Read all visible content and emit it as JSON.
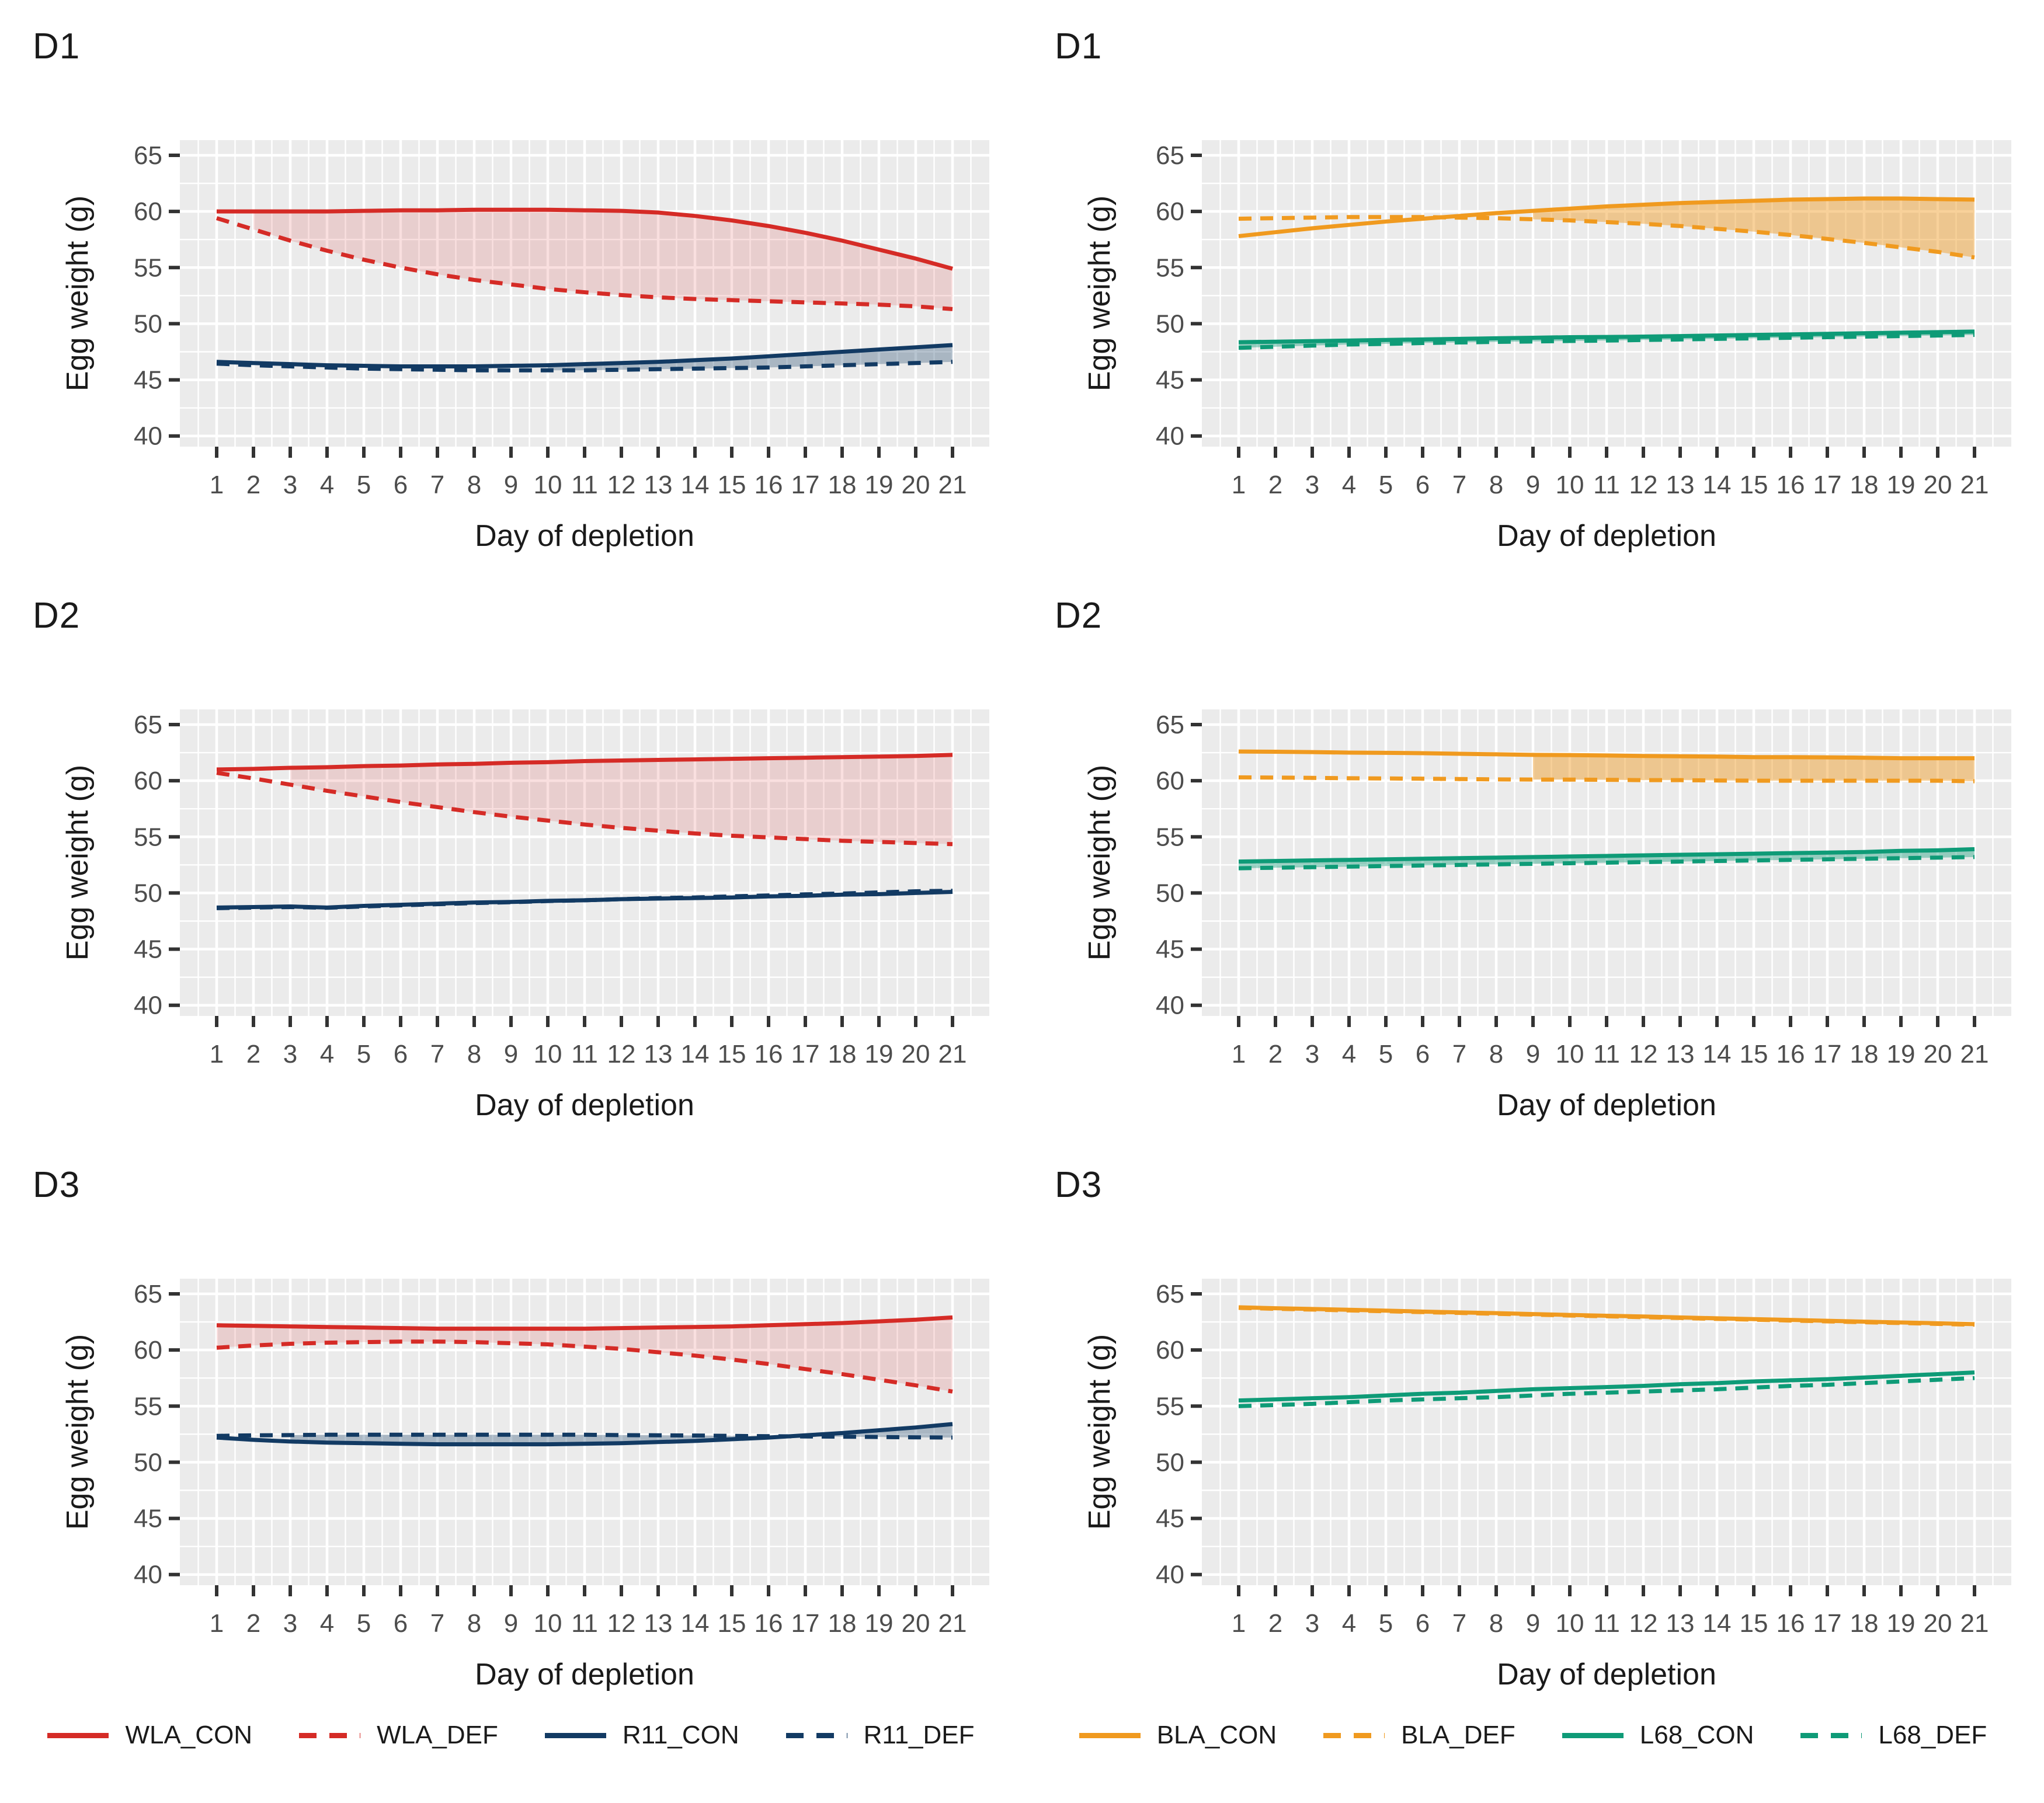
{
  "colors": {
    "panel_bg": "#EBEBEB",
    "grid": "#FFFFFF",
    "tick": "#333333",
    "tick_label": "#4D4D4D",
    "axis_title": "#1A1A1A",
    "wla_red": "#D52B26",
    "r11_navy": "#123A63",
    "bla_orange": "#F09A1F",
    "l68_green": "#0E9B77"
  },
  "chart_data": [
    {
      "type": "line",
      "title": "D1",
      "column": "left",
      "xlabel": "Day of depletion",
      "ylabel": "Egg weight (g)",
      "x": [
        1,
        2,
        3,
        4,
        5,
        6,
        7,
        8,
        9,
        10,
        11,
        12,
        13,
        14,
        15,
        16,
        17,
        18,
        19,
        20,
        21
      ],
      "xlim": [
        0,
        22
      ],
      "ylim": [
        39.05,
        66.35
      ],
      "yticks": [
        40,
        45,
        50,
        55,
        60,
        65
      ],
      "grid": "major+minor",
      "legend_position": "bottom",
      "series": [
        {
          "name": "WLA_CON",
          "color": "#D52B26",
          "style": "solid",
          "values": [
            60,
            60,
            60,
            60,
            60.05,
            60.1,
            60.1,
            60.15,
            60.15,
            60.15,
            60.1,
            60.05,
            59.9,
            59.6,
            59.2,
            58.7,
            58.1,
            57.4,
            56.6,
            55.8,
            54.9
          ]
        },
        {
          "name": "WLA_DEF",
          "color": "#D52B26",
          "style": "dashed",
          "values": [
            59.4,
            58.4,
            57.4,
            56.5,
            55.7,
            55,
            54.4,
            53.9,
            53.5,
            53.1,
            52.8,
            52.55,
            52.35,
            52.2,
            52.1,
            52,
            51.9,
            51.8,
            51.7,
            51.55,
            51.3
          ]
        },
        {
          "name": "R11_CON",
          "color": "#123A63",
          "style": "solid",
          "values": [
            46.6,
            46.5,
            46.4,
            46.3,
            46.25,
            46.2,
            46.2,
            46.2,
            46.25,
            46.3,
            46.4,
            46.5,
            46.6,
            46.75,
            46.9,
            47.1,
            47.3,
            47.5,
            47.7,
            47.9,
            48.1
          ]
        },
        {
          "name": "R11_DEF",
          "color": "#123A63",
          "style": "dashed",
          "values": [
            46.45,
            46.3,
            46.2,
            46.1,
            46,
            45.95,
            45.9,
            45.85,
            45.85,
            45.85,
            45.85,
            45.9,
            45.95,
            46,
            46.05,
            46.1,
            46.2,
            46.3,
            46.4,
            46.5,
            46.6
          ]
        }
      ],
      "ribbons": [
        {
          "upper": "WLA_CON",
          "lower": "WLA_DEF",
          "color": "#D52B26",
          "opacity": 0.15,
          "from": 2,
          "to": 21
        },
        {
          "upper": "R11_CON",
          "lower": "R11_DEF",
          "color": "#123A63",
          "opacity": 0.3,
          "from": 10,
          "to": 21
        }
      ]
    },
    {
      "type": "line",
      "title": "D1",
      "column": "right",
      "xlabel": "Day of depletion",
      "ylabel": "Egg weight (g)",
      "x": [
        1,
        2,
        3,
        4,
        5,
        6,
        7,
        8,
        9,
        10,
        11,
        12,
        13,
        14,
        15,
        16,
        17,
        18,
        19,
        20,
        21
      ],
      "xlim": [
        0,
        22
      ],
      "ylim": [
        39.05,
        66.35
      ],
      "yticks": [
        40,
        45,
        50,
        55,
        60,
        65
      ],
      "grid": "major+minor",
      "legend_position": "bottom",
      "series": [
        {
          "name": "BLA_CON",
          "color": "#F09A1F",
          "style": "solid",
          "values": [
            57.8,
            58.15,
            58.5,
            58.8,
            59.1,
            59.35,
            59.6,
            59.85,
            60.05,
            60.25,
            60.45,
            60.6,
            60.75,
            60.85,
            60.95,
            61.05,
            61.1,
            61.15,
            61.15,
            61.1,
            61.05
          ]
        },
        {
          "name": "BLA_DEF",
          "color": "#F09A1F",
          "style": "dashed",
          "values": [
            59.35,
            59.4,
            59.45,
            59.5,
            59.5,
            59.5,
            59.45,
            59.4,
            59.3,
            59.2,
            59.05,
            58.9,
            58.7,
            58.45,
            58.2,
            57.9,
            57.55,
            57.2,
            56.8,
            56.4,
            55.9
          ]
        },
        {
          "name": "L68_CON",
          "color": "#0E9B77",
          "style": "solid",
          "values": [
            48.35,
            48.4,
            48.45,
            48.5,
            48.55,
            48.6,
            48.65,
            48.7,
            48.75,
            48.8,
            48.82,
            48.85,
            48.9,
            48.95,
            49,
            49.05,
            49.1,
            49.15,
            49.2,
            49.25,
            49.3
          ]
        },
        {
          "name": "L68_DEF",
          "color": "#0E9B77",
          "style": "dashed",
          "values": [
            47.85,
            47.95,
            48.05,
            48.15,
            48.2,
            48.28,
            48.33,
            48.38,
            48.42,
            48.46,
            48.5,
            48.55,
            48.6,
            48.65,
            48.7,
            48.75,
            48.8,
            48.85,
            48.9,
            48.95,
            49
          ]
        }
      ],
      "ribbons": [
        {
          "upper": "BLA_CON",
          "lower": "BLA_DEF",
          "color": "#F09A1F",
          "opacity": 0.45,
          "from": 9,
          "to": 21
        },
        {
          "upper": "L68_CON",
          "lower": "L68_DEF",
          "color": "#0E9B77",
          "opacity": 0.4,
          "from": 1,
          "to": 21
        }
      ]
    },
    {
      "type": "line",
      "title": "D2",
      "column": "left",
      "xlabel": "Day of depletion",
      "ylabel": "Egg weight (g)",
      "x": [
        1,
        2,
        3,
        4,
        5,
        6,
        7,
        8,
        9,
        10,
        11,
        12,
        13,
        14,
        15,
        16,
        17,
        18,
        19,
        20,
        21
      ],
      "xlim": [
        0,
        22
      ],
      "ylim": [
        39.05,
        66.35
      ],
      "yticks": [
        40,
        45,
        50,
        55,
        60,
        65
      ],
      "grid": "major+minor",
      "legend_position": "bottom",
      "series": [
        {
          "name": "WLA_CON",
          "color": "#D52B26",
          "style": "solid",
          "values": [
            61,
            61.05,
            61.15,
            61.2,
            61.3,
            61.35,
            61.45,
            61.5,
            61.6,
            61.65,
            61.75,
            61.8,
            61.85,
            61.9,
            61.95,
            62,
            62.05,
            62.1,
            62.15,
            62.2,
            62.3
          ]
        },
        {
          "name": "WLA_DEF",
          "color": "#D52B26",
          "style": "dashed",
          "values": [
            60.7,
            60.2,
            59.65,
            59.1,
            58.6,
            58.1,
            57.65,
            57.2,
            56.8,
            56.45,
            56.1,
            55.8,
            55.55,
            55.3,
            55.1,
            54.95,
            54.8,
            54.65,
            54.55,
            54.45,
            54.35
          ]
        },
        {
          "name": "R11_CON",
          "color": "#123A63",
          "style": "solid",
          "values": [
            48.7,
            48.75,
            48.8,
            48.7,
            48.85,
            48.95,
            49.05,
            49.15,
            49.2,
            49.3,
            49.35,
            49.45,
            49.5,
            49.55,
            49.6,
            49.7,
            49.75,
            49.85,
            49.9,
            50,
            50.1
          ]
        },
        {
          "name": "R11_DEF",
          "color": "#123A63",
          "style": "dashed",
          "values": [
            48.65,
            48.7,
            48.75,
            48.68,
            48.8,
            48.9,
            49,
            49.1,
            49.18,
            49.28,
            49.35,
            49.45,
            49.55,
            49.6,
            49.7,
            49.78,
            49.88,
            49.95,
            50.05,
            50.15,
            50.2
          ]
        }
      ],
      "ribbons": [
        {
          "upper": "WLA_CON",
          "lower": "WLA_DEF",
          "color": "#D52B26",
          "opacity": 0.15,
          "from": 3,
          "to": 21
        }
      ]
    },
    {
      "type": "line",
      "title": "D2",
      "column": "right",
      "xlabel": "Day of depletion",
      "ylabel": "Egg weight (g)",
      "x": [
        1,
        2,
        3,
        4,
        5,
        6,
        7,
        8,
        9,
        10,
        11,
        12,
        13,
        14,
        15,
        16,
        17,
        18,
        19,
        20,
        21
      ],
      "xlim": [
        0,
        22
      ],
      "ylim": [
        39.05,
        66.35
      ],
      "yticks": [
        40,
        45,
        50,
        55,
        60,
        65
      ],
      "grid": "major+minor",
      "legend_position": "bottom",
      "series": [
        {
          "name": "BLA_CON",
          "color": "#F09A1F",
          "style": "solid",
          "values": [
            62.6,
            62.58,
            62.55,
            62.5,
            62.48,
            62.45,
            62.4,
            62.35,
            62.3,
            62.28,
            62.25,
            62.2,
            62.18,
            62.15,
            62.1,
            62.1,
            62.08,
            62.05,
            62,
            62,
            62
          ]
        },
        {
          "name": "BLA_DEF",
          "color": "#F09A1F",
          "style": "dashed",
          "values": [
            60.3,
            60.28,
            60.25,
            60.22,
            60.2,
            60.18,
            60.15,
            60.12,
            60.1,
            60.1,
            60.08,
            60.05,
            60.05,
            60.02,
            60,
            60,
            60,
            60,
            60,
            60,
            59.95
          ]
        },
        {
          "name": "L68_CON",
          "color": "#0E9B77",
          "style": "solid",
          "values": [
            52.8,
            52.85,
            52.9,
            52.95,
            53,
            53.05,
            53.1,
            53.15,
            53.2,
            53.25,
            53.3,
            53.35,
            53.4,
            53.45,
            53.5,
            53.55,
            53.6,
            53.65,
            53.75,
            53.8,
            53.9
          ]
        },
        {
          "name": "L68_DEF",
          "color": "#0E9B77",
          "style": "dashed",
          "values": [
            52.2,
            52.25,
            52.3,
            52.35,
            52.4,
            52.45,
            52.5,
            52.55,
            52.6,
            52.65,
            52.7,
            52.75,
            52.8,
            52.85,
            52.9,
            52.95,
            53,
            53.05,
            53.1,
            53.15,
            53.2
          ]
        }
      ],
      "ribbons": [
        {
          "upper": "BLA_CON",
          "lower": "BLA_DEF",
          "color": "#F09A1F",
          "opacity": 0.45,
          "from": 9,
          "to": 21
        },
        {
          "upper": "L68_CON",
          "lower": "L68_DEF",
          "color": "#0E9B77",
          "opacity": 0.4,
          "from": 1,
          "to": 21
        }
      ]
    },
    {
      "type": "line",
      "title": "D3",
      "column": "left",
      "xlabel": "Day of depletion",
      "ylabel": "Egg weight (g)",
      "x": [
        1,
        2,
        3,
        4,
        5,
        6,
        7,
        8,
        9,
        10,
        11,
        12,
        13,
        14,
        15,
        16,
        17,
        18,
        19,
        20,
        21
      ],
      "xlim": [
        0,
        22
      ],
      "ylim": [
        39.05,
        66.35
      ],
      "yticks": [
        40,
        45,
        50,
        55,
        60,
        65
      ],
      "grid": "major+minor",
      "legend_position": "bottom",
      "series": [
        {
          "name": "WLA_CON",
          "color": "#D52B26",
          "style": "solid",
          "values": [
            62.2,
            62.15,
            62.1,
            62.05,
            62,
            61.95,
            61.9,
            61.9,
            61.9,
            61.9,
            61.9,
            61.95,
            62,
            62.05,
            62.1,
            62.2,
            62.3,
            62.4,
            62.55,
            62.7,
            62.9
          ]
        },
        {
          "name": "WLA_DEF",
          "color": "#D52B26",
          "style": "dashed",
          "values": [
            60.2,
            60.4,
            60.55,
            60.65,
            60.7,
            60.75,
            60.75,
            60.7,
            60.6,
            60.5,
            60.3,
            60.1,
            59.8,
            59.5,
            59.15,
            58.75,
            58.3,
            57.85,
            57.35,
            56.85,
            56.3
          ]
        },
        {
          "name": "R11_CON",
          "color": "#123A63",
          "style": "solid",
          "values": [
            52.2,
            52,
            51.85,
            51.75,
            51.7,
            51.65,
            51.6,
            51.6,
            51.6,
            51.6,
            51.65,
            51.7,
            51.8,
            51.9,
            52.05,
            52.2,
            52.4,
            52.6,
            52.85,
            53.1,
            53.4
          ]
        },
        {
          "name": "R11_DEF",
          "color": "#123A63",
          "style": "dashed",
          "values": [
            52.35,
            52.4,
            52.42,
            52.45,
            52.45,
            52.45,
            52.45,
            52.45,
            52.45,
            52.45,
            52.45,
            52.42,
            52.4,
            52.38,
            52.35,
            52.32,
            52.3,
            52.28,
            52.25,
            52.22,
            52.2
          ]
        }
      ],
      "ribbons": [
        {
          "upper": "WLA_CON",
          "lower": "WLA_DEF",
          "color": "#D52B26",
          "opacity": 0.15,
          "from": 1,
          "to": 21
        },
        {
          "upper": "R11_DEF",
          "lower": "R11_CON",
          "color": "#123A63",
          "opacity": 0.3,
          "from": 3,
          "to": 21
        }
      ]
    },
    {
      "type": "line",
      "title": "D3",
      "column": "right",
      "xlabel": "Day of depletion",
      "ylabel": "Egg weight (g)",
      "x": [
        1,
        2,
        3,
        4,
        5,
        6,
        7,
        8,
        9,
        10,
        11,
        12,
        13,
        14,
        15,
        16,
        17,
        18,
        19,
        20,
        21
      ],
      "xlim": [
        0,
        22
      ],
      "ylim": [
        39.05,
        66.35
      ],
      "yticks": [
        40,
        45,
        50,
        55,
        60,
        65
      ],
      "grid": "major+minor",
      "legend_position": "bottom",
      "series": [
        {
          "name": "BLA_CON",
          "color": "#F09A1F",
          "style": "solid",
          "values": [
            63.8,
            63.72,
            63.65,
            63.58,
            63.5,
            63.42,
            63.35,
            63.28,
            63.2,
            63.12,
            63.05,
            62.98,
            62.9,
            62.82,
            62.75,
            62.68,
            62.6,
            62.52,
            62.45,
            62.38,
            62.3
          ]
        },
        {
          "name": "BLA_DEF",
          "color": "#F09A1F",
          "style": "dashed",
          "values": [
            63.75,
            63.67,
            63.6,
            63.52,
            63.45,
            63.37,
            63.3,
            63.22,
            63.15,
            63.07,
            63,
            62.92,
            62.85,
            62.77,
            62.7,
            62.62,
            62.55,
            62.47,
            62.4,
            62.32,
            62.25
          ]
        },
        {
          "name": "L68_CON",
          "color": "#0E9B77",
          "style": "solid",
          "values": [
            55.5,
            55.6,
            55.7,
            55.8,
            55.95,
            56.1,
            56.2,
            56.35,
            56.5,
            56.6,
            56.7,
            56.8,
            56.95,
            57.05,
            57.2,
            57.3,
            57.4,
            57.55,
            57.7,
            57.85,
            58
          ]
        },
        {
          "name": "L68_DEF",
          "color": "#0E9B77",
          "style": "dashed",
          "values": [
            55,
            55.1,
            55.2,
            55.35,
            55.5,
            55.6,
            55.7,
            55.8,
            55.95,
            56.1,
            56.2,
            56.3,
            56.4,
            56.5,
            56.65,
            56.8,
            56.9,
            57.05,
            57.2,
            57.35,
            57.5
          ]
        }
      ],
      "ribbons": []
    }
  ],
  "legends": {
    "left": {
      "items": [
        {
          "label": "WLA_CON",
          "color": "#D52B26",
          "style": "solid"
        },
        {
          "label": "WLA_DEF",
          "color": "#D52B26",
          "style": "dashed"
        },
        {
          "label": "R11_CON",
          "color": "#123A63",
          "style": "solid"
        },
        {
          "label": "R11_DEF",
          "color": "#123A63",
          "style": "dashed"
        }
      ]
    },
    "right": {
      "items": [
        {
          "label": "BLA_CON",
          "color": "#F09A1F",
          "style": "solid"
        },
        {
          "label": "BLA_DEF",
          "color": "#F09A1F",
          "style": "dashed"
        },
        {
          "label": "L68_CON",
          "color": "#0E9B77",
          "style": "solid"
        },
        {
          "label": "L68_DEF",
          "color": "#0E9B77",
          "style": "dashed"
        }
      ]
    }
  }
}
